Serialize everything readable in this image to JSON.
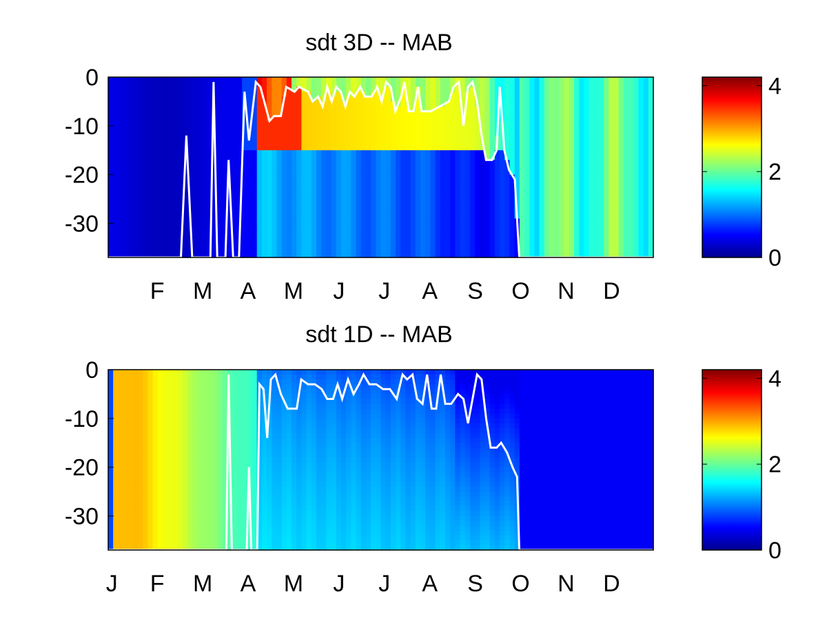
{
  "chart_data": [
    {
      "type": "heatmap",
      "title": "sdt 3D   -- MAB",
      "x_tick_labels": [
        "F",
        "M",
        "A",
        "M",
        "J",
        "J",
        "A",
        "S",
        "O",
        "N",
        "D"
      ],
      "y_tick_labels": [
        "0",
        "-10",
        "-20",
        "-30"
      ],
      "y_ticks": [
        0,
        -10,
        -20,
        -30
      ],
      "ylim": [
        -37,
        0
      ],
      "xlim": [
        1,
        13
      ],
      "x_month_positions": [
        2,
        3,
        4,
        5,
        6,
        7,
        8,
        9,
        10,
        11,
        12
      ],
      "colorbar": {
        "min": 0,
        "max": 4.2,
        "tick_labels": [
          "0",
          "2",
          "4"
        ],
        "ticks": [
          0,
          2,
          4
        ],
        "colormap": "jet"
      },
      "value_description": "approximate sdt values by day-of-year column and depth band (0 to -37 m)",
      "profile": [
        {
          "x": 1.0,
          "v": 0.45
        },
        {
          "x": 2.0,
          "v": 0.4
        },
        {
          "x": 3.0,
          "v": 0.35
        },
        {
          "x": 4.0,
          "v": 0.4
        },
        {
          "x": 4.4,
          "v": 0.5
        },
        {
          "x": 4.7,
          "v": 0.7
        }
      ],
      "regimes": {
        "winter_uniform": 0.4,
        "summer_surface_peak": 3.8,
        "summer_thermocline": 3.0,
        "summer_deep": 0.9,
        "autumn_mixed": 2.1
      },
      "mixed_layer_depth": [
        [
          1.0,
          -37
        ],
        [
          2.6,
          -37
        ],
        [
          2.72,
          -12
        ],
        [
          2.85,
          -37
        ],
        [
          3.25,
          -37
        ],
        [
          3.32,
          -1
        ],
        [
          3.4,
          -37
        ],
        [
          3.58,
          -37
        ],
        [
          3.65,
          -17
        ],
        [
          3.75,
          -37
        ],
        [
          3.88,
          -37
        ],
        [
          4.0,
          -3
        ],
        [
          4.1,
          -13
        ],
        [
          4.25,
          -1
        ],
        [
          4.35,
          -2
        ],
        [
          4.55,
          -9
        ],
        [
          4.65,
          -8
        ],
        [
          4.8,
          -8
        ],
        [
          4.92,
          -2
        ],
        [
          5.1,
          -3
        ],
        [
          5.2,
          -2
        ],
        [
          5.4,
          -3
        ],
        [
          5.5,
          -5
        ],
        [
          5.62,
          -4
        ],
        [
          5.72,
          -6
        ],
        [
          5.82,
          -2
        ],
        [
          5.92,
          -5
        ],
        [
          6.02,
          -2
        ],
        [
          6.12,
          -3
        ],
        [
          6.22,
          -6
        ],
        [
          6.32,
          -3
        ],
        [
          6.42,
          -4
        ],
        [
          6.55,
          -2
        ],
        [
          6.65,
          -4
        ],
        [
          6.8,
          -4
        ],
        [
          6.92,
          -2
        ],
        [
          7.02,
          -5
        ],
        [
          7.12,
          -1
        ],
        [
          7.22,
          -2
        ],
        [
          7.32,
          -7
        ],
        [
          7.45,
          -4
        ],
        [
          7.52,
          -1
        ],
        [
          7.62,
          -7
        ],
        [
          7.72,
          -7
        ],
        [
          7.82,
          -2
        ],
        [
          7.9,
          -7
        ],
        [
          8.1,
          -7
        ],
        [
          8.3,
          -6
        ],
        [
          8.5,
          -5
        ],
        [
          8.6,
          -2
        ],
        [
          8.72,
          -1
        ],
        [
          8.82,
          -10
        ],
        [
          8.92,
          -2
        ],
        [
          9.02,
          -1
        ],
        [
          9.12,
          -5
        ],
        [
          9.22,
          -12
        ],
        [
          9.32,
          -17
        ],
        [
          9.45,
          -17
        ],
        [
          9.55,
          -15
        ],
        [
          9.62,
          -2
        ],
        [
          9.72,
          -15
        ],
        [
          9.82,
          -19
        ],
        [
          9.95,
          -21
        ],
        [
          10.05,
          -37
        ],
        [
          13.0,
          -37
        ]
      ]
    },
    {
      "type": "heatmap",
      "title": "sdt 1D   -- MAB",
      "x_tick_labels": [
        "J",
        "F",
        "M",
        "A",
        "M",
        "J",
        "J",
        "A",
        "S",
        "O",
        "N",
        "D"
      ],
      "y_tick_labels": [
        "0",
        "-10",
        "-20",
        "-30"
      ],
      "y_ticks": [
        0,
        -10,
        -20,
        -30
      ],
      "ylim": [
        -37,
        0
      ],
      "xlim": [
        1,
        13
      ],
      "x_month_positions": [
        1,
        2,
        3,
        4,
        5,
        6,
        7,
        8,
        9,
        10,
        11,
        12
      ],
      "colorbar": {
        "min": 0,
        "max": 4.2,
        "tick_labels": [
          "0",
          "2",
          "4"
        ],
        "ticks": [
          0,
          2,
          4
        ],
        "colormap": "jet"
      },
      "regimes": {
        "january_band": 2.9,
        "spring_fading": 1.8,
        "summer_surface": 0.6,
        "summer_deep": 1.3,
        "winter": 0.5
      },
      "mixed_layer_depth": [
        [
          1.0,
          -37
        ],
        [
          3.6,
          -37
        ],
        [
          3.65,
          -1
        ],
        [
          3.72,
          -37
        ],
        [
          4.05,
          -37
        ],
        [
          4.1,
          -20
        ],
        [
          4.15,
          -37
        ],
        [
          4.28,
          -37
        ],
        [
          4.33,
          -3
        ],
        [
          4.42,
          -4
        ],
        [
          4.5,
          -14
        ],
        [
          4.58,
          -2
        ],
        [
          4.68,
          -1
        ],
        [
          4.8,
          -5
        ],
        [
          4.95,
          -8
        ],
        [
          5.15,
          -8
        ],
        [
          5.25,
          -2
        ],
        [
          5.4,
          -3
        ],
        [
          5.55,
          -3
        ],
        [
          5.7,
          -4
        ],
        [
          5.82,
          -6
        ],
        [
          5.95,
          -6
        ],
        [
          6.05,
          -3
        ],
        [
          6.15,
          -6
        ],
        [
          6.28,
          -2
        ],
        [
          6.4,
          -5
        ],
        [
          6.52,
          -3
        ],
        [
          6.62,
          -1
        ],
        [
          6.75,
          -3
        ],
        [
          6.9,
          -3
        ],
        [
          7.05,
          -4
        ],
        [
          7.2,
          -4
        ],
        [
          7.35,
          -6
        ],
        [
          7.48,
          -1
        ],
        [
          7.58,
          -2
        ],
        [
          7.7,
          -1
        ],
        [
          7.8,
          -6
        ],
        [
          7.92,
          -7
        ],
        [
          8.02,
          -1
        ],
        [
          8.12,
          -8
        ],
        [
          8.22,
          -8
        ],
        [
          8.32,
          -1
        ],
        [
          8.42,
          -7
        ],
        [
          8.55,
          -7
        ],
        [
          8.7,
          -5
        ],
        [
          8.82,
          -6
        ],
        [
          8.92,
          -11
        ],
        [
          9.02,
          -6
        ],
        [
          9.12,
          -1
        ],
        [
          9.22,
          -2
        ],
        [
          9.32,
          -10
        ],
        [
          9.42,
          -16
        ],
        [
          9.55,
          -16
        ],
        [
          9.65,
          -15
        ],
        [
          9.78,
          -17
        ],
        [
          9.9,
          -20
        ],
        [
          10.0,
          -22
        ],
        [
          10.05,
          -37
        ],
        [
          13.0,
          -37
        ]
      ]
    }
  ]
}
